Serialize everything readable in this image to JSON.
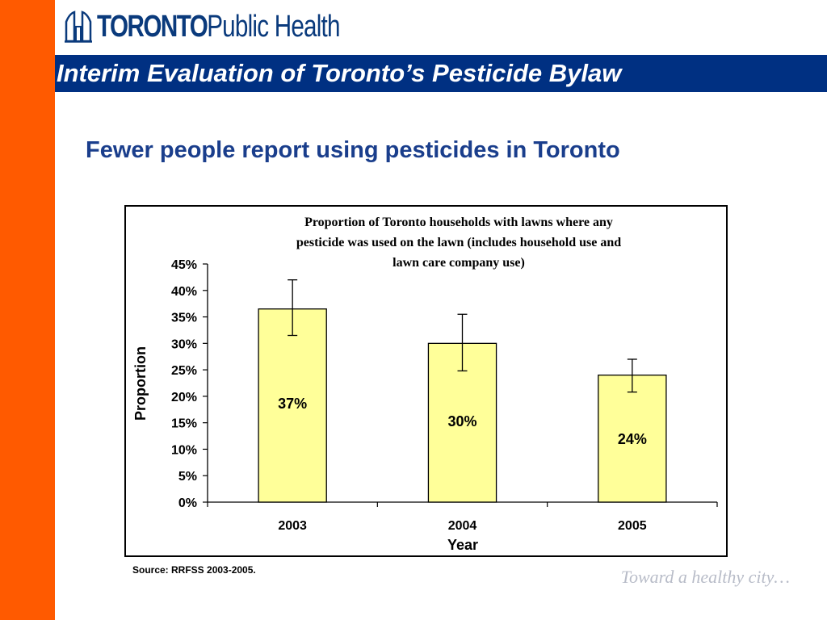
{
  "header": {
    "logo_bold": "TORONTO",
    "logo_light": "Public Health",
    "title": "Interim Evaluation of Toronto’s Pesticide Bylaw"
  },
  "subtitle": "Fewer people report using pesticides in Toronto",
  "source": "Source: RRFSS 2003-2005.",
  "tagline": "Toward a healthy city…",
  "colors": {
    "orange_bar": "#ff5a00",
    "title_band": "#003082",
    "bar_fill": "#ffff99",
    "subtitle_text": "#1a3e8c"
  },
  "chart_data": {
    "type": "bar",
    "title_lines": [
      "Proportion of Toronto households with lawns where any",
      "pesticide was used on the lawn (includes household use and",
      "lawn care company use)"
    ],
    "xlabel": "Year",
    "ylabel": "Proportion",
    "categories": [
      "2003",
      "2004",
      "2005"
    ],
    "values": [
      36.5,
      30,
      24
    ],
    "error_low": [
      31.5,
      24.8,
      20.8
    ],
    "error_high": [
      42,
      35.5,
      27
    ],
    "data_labels": [
      "37%",
      "30%",
      "24%"
    ],
    "ylim": [
      0,
      45
    ],
    "yticks": [
      0,
      5,
      10,
      15,
      20,
      25,
      30,
      35,
      40,
      45
    ],
    "ytick_suffix": "%",
    "grid": false,
    "legend": "none"
  }
}
